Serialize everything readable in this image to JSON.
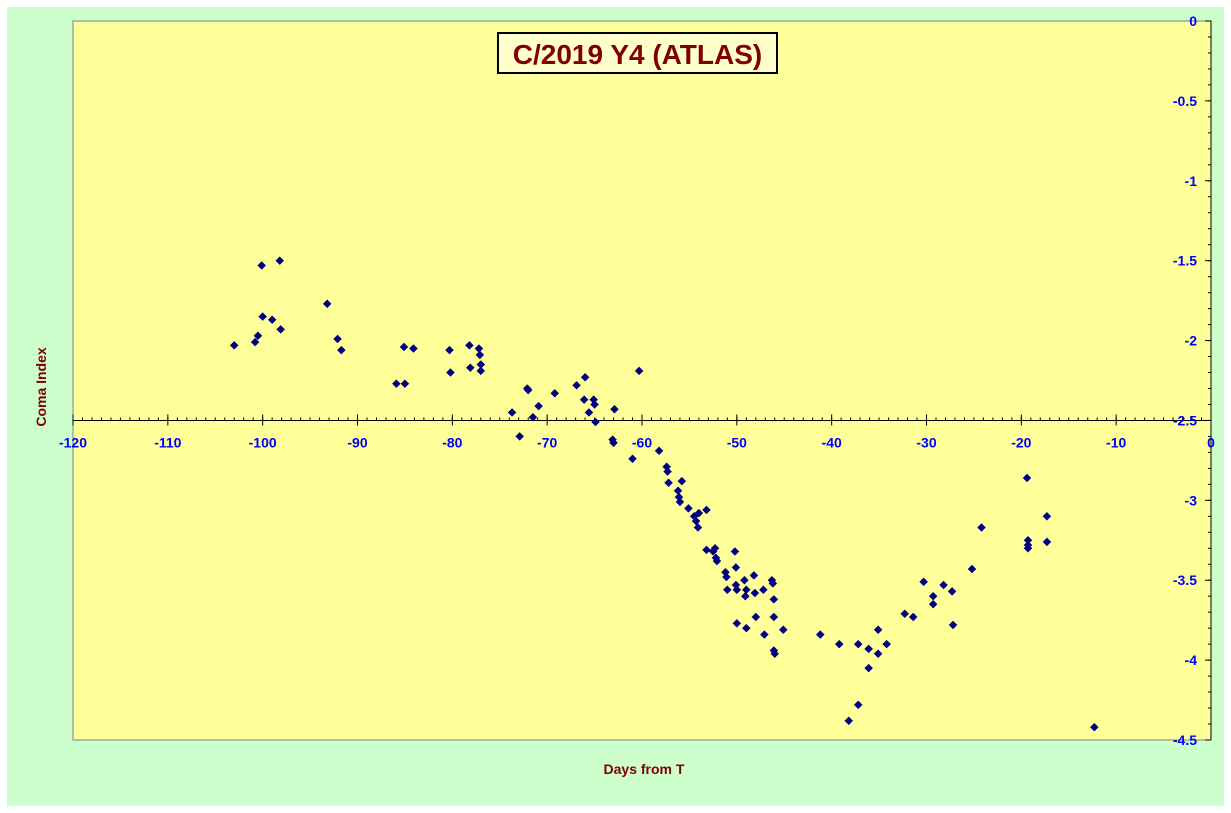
{
  "colors": {
    "background": "#ccffcc",
    "plot_area": "#ffff99",
    "marker": "#000080",
    "tick_label": "#0000ff",
    "axis_title": "#800000",
    "title_text": "#800000",
    "title_box": "#ffffcc"
  },
  "chart_data": {
    "type": "scatter",
    "title": "C/2019 Y4 (ATLAS)",
    "xlabel": "Days from  T",
    "ylabel": "Coma Index",
    "xlim": [
      -120,
      0
    ],
    "ylim": [
      -4.5,
      0
    ],
    "x_ticks": [
      -120,
      -110,
      -100,
      -90,
      -80,
      -70,
      -60,
      -50,
      -40,
      -30,
      -20,
      -10,
      0
    ],
    "y_ticks": [
      0,
      -0.5,
      -1,
      -1.5,
      -2,
      -2.5,
      -3,
      -3.5,
      -4,
      -4.5
    ],
    "x_axis_crosses_y": -2.5,
    "y_axis_position": "right",
    "gridlines": false,
    "legend": "none",
    "marker": "diamond",
    "points": [
      [
        -103,
        -2.03
      ],
      [
        -100.8,
        -2.01
      ],
      [
        -100.5,
        -1.97
      ],
      [
        -100.1,
        -1.53
      ],
      [
        -100,
        -1.85
      ],
      [
        -99,
        -1.87
      ],
      [
        -98.2,
        -1.5
      ],
      [
        -98.1,
        -1.93
      ],
      [
        -93.2,
        -1.77
      ],
      [
        -92.1,
        -1.99
      ],
      [
        -91.7,
        -2.06
      ],
      [
        -85.9,
        -2.27
      ],
      [
        -85.1,
        -2.04
      ],
      [
        -85,
        -2.27
      ],
      [
        -84.1,
        -2.05
      ],
      [
        -80.3,
        -2.06
      ],
      [
        -80.2,
        -2.2
      ],
      [
        -78.2,
        -2.03
      ],
      [
        -78.1,
        -2.17
      ],
      [
        -77.2,
        -2.05
      ],
      [
        -77.1,
        -2.09
      ],
      [
        -77,
        -2.15
      ],
      [
        -77,
        -2.19
      ],
      [
        -73.7,
        -2.45
      ],
      [
        -72.9,
        -2.6
      ],
      [
        -72.1,
        -2.3
      ],
      [
        -72,
        -2.31
      ],
      [
        -71.5,
        -2.48
      ],
      [
        -70.9,
        -2.41
      ],
      [
        -69.2,
        -2.33
      ],
      [
        -66.9,
        -2.28
      ],
      [
        -66.1,
        -2.37
      ],
      [
        -66,
        -2.23
      ],
      [
        -65.6,
        -2.45
      ],
      [
        -65.1,
        -2.37
      ],
      [
        -65,
        -2.4
      ],
      [
        -64.9,
        -2.51
      ],
      [
        -63.1,
        -2.62
      ],
      [
        -63,
        -2.64
      ],
      [
        -62.9,
        -2.43
      ],
      [
        -61,
        -2.74
      ],
      [
        -60.3,
        -2.19
      ],
      [
        -58.2,
        -2.69
      ],
      [
        -57.4,
        -2.79
      ],
      [
        -57.3,
        -2.82
      ],
      [
        -57.2,
        -2.89
      ],
      [
        -56.2,
        -2.94
      ],
      [
        -56.1,
        -2.98
      ],
      [
        -56,
        -3.01
      ],
      [
        -55.8,
        -2.88
      ],
      [
        -55.1,
        -3.05
      ],
      [
        -54.5,
        -3.1
      ],
      [
        -54.3,
        -3.13
      ],
      [
        -54.1,
        -3.17
      ],
      [
        -54,
        -3.08
      ],
      [
        -53.2,
        -3.06
      ],
      [
        -53.2,
        -3.31
      ],
      [
        -52.5,
        -3.32
      ],
      [
        -52.3,
        -3.3
      ],
      [
        -52.2,
        -3.36
      ],
      [
        -52.1,
        -3.38
      ],
      [
        -51.2,
        -3.45
      ],
      [
        -51.1,
        -3.48
      ],
      [
        -51,
        -3.56
      ],
      [
        -50.2,
        -3.32
      ],
      [
        -50.1,
        -3.42
      ],
      [
        -50.1,
        -3.53
      ],
      [
        -50,
        -3.56
      ],
      [
        -50,
        -3.77
      ],
      [
        -49.2,
        -3.5
      ],
      [
        -49.1,
        -3.6
      ],
      [
        -49,
        -3.56
      ],
      [
        -49,
        -3.8
      ],
      [
        -48.2,
        -3.47
      ],
      [
        -48.1,
        -3.58
      ],
      [
        -48,
        -3.73
      ],
      [
        -47.2,
        -3.56
      ],
      [
        -47.1,
        -3.84
      ],
      [
        -46.3,
        -3.5
      ],
      [
        -46.2,
        -3.52
      ],
      [
        -46.1,
        -3.62
      ],
      [
        -46.1,
        -3.73
      ],
      [
        -46.1,
        -3.94
      ],
      [
        -46,
        -3.96
      ],
      [
        -45.1,
        -3.81
      ],
      [
        -41.2,
        -3.84
      ],
      [
        -39.2,
        -3.9
      ],
      [
        -38.2,
        -4.38
      ],
      [
        -37.2,
        -3.9
      ],
      [
        -37.2,
        -4.28
      ],
      [
        -36.1,
        -3.93
      ],
      [
        -36.1,
        -4.05
      ],
      [
        -35.1,
        -3.81
      ],
      [
        -35.1,
        -3.96
      ],
      [
        -34.2,
        -3.9
      ],
      [
        -32.3,
        -3.71
      ],
      [
        -31.4,
        -3.73
      ],
      [
        -30.3,
        -3.51
      ],
      [
        -29.3,
        -3.6
      ],
      [
        -29.3,
        -3.65
      ],
      [
        -28.2,
        -3.53
      ],
      [
        -27.3,
        -3.57
      ],
      [
        -27.2,
        -3.78
      ],
      [
        -25.2,
        -3.43
      ],
      [
        -24.2,
        -3.17
      ],
      [
        -19.4,
        -2.86
      ],
      [
        -19.3,
        -3.25
      ],
      [
        -19.3,
        -3.28
      ],
      [
        -19.3,
        -3.3
      ],
      [
        -17.3,
        -3.1
      ],
      [
        -17.3,
        -3.26
      ],
      [
        -12.3,
        -4.42
      ]
    ]
  }
}
